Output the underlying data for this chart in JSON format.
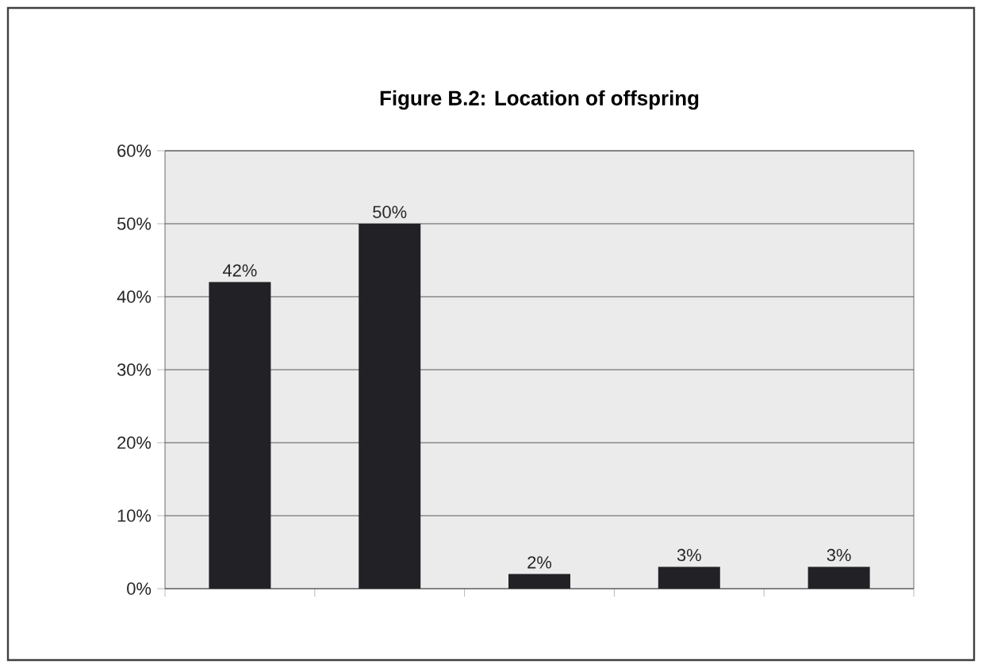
{
  "chart_data": {
    "type": "bar",
    "title": "Figure B.2: Location of offspring",
    "categories": [
      null,
      null,
      null,
      null,
      null
    ],
    "values": [
      42,
      50,
      2,
      3,
      3
    ],
    "value_labels": [
      "42%",
      "50%",
      "2%",
      "3%",
      "3%"
    ],
    "color": "#222226",
    "ylim": [
      0,
      60
    ],
    "yticks": [
      {
        "value": 0,
        "label": "0%"
      },
      {
        "value": 10,
        "label": "10%"
      },
      {
        "value": 20,
        "label": "20%"
      },
      {
        "value": 30,
        "label": "30%"
      },
      {
        "value": 40,
        "label": "40%"
      },
      {
        "value": 50,
        "label": "50%"
      },
      {
        "value": 60,
        "label": "60%"
      }
    ],
    "grid": "y",
    "tick_labels": "y"
  }
}
